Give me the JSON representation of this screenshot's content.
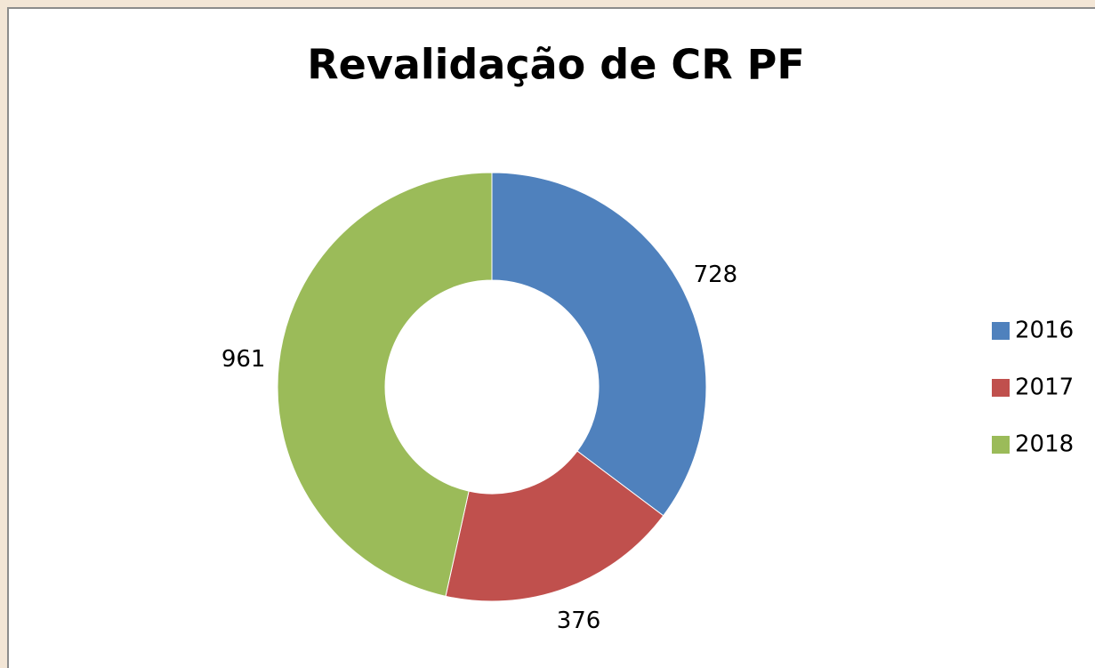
{
  "chart_data": {
    "type": "donut",
    "title": "Revalidação de CR PF",
    "categories": [
      "2016",
      "2017",
      "2018"
    ],
    "values": [
      728,
      376,
      961
    ],
    "colors": [
      "#4f81bd",
      "#c0504d",
      "#9bbb59"
    ],
    "legend": "right"
  }
}
